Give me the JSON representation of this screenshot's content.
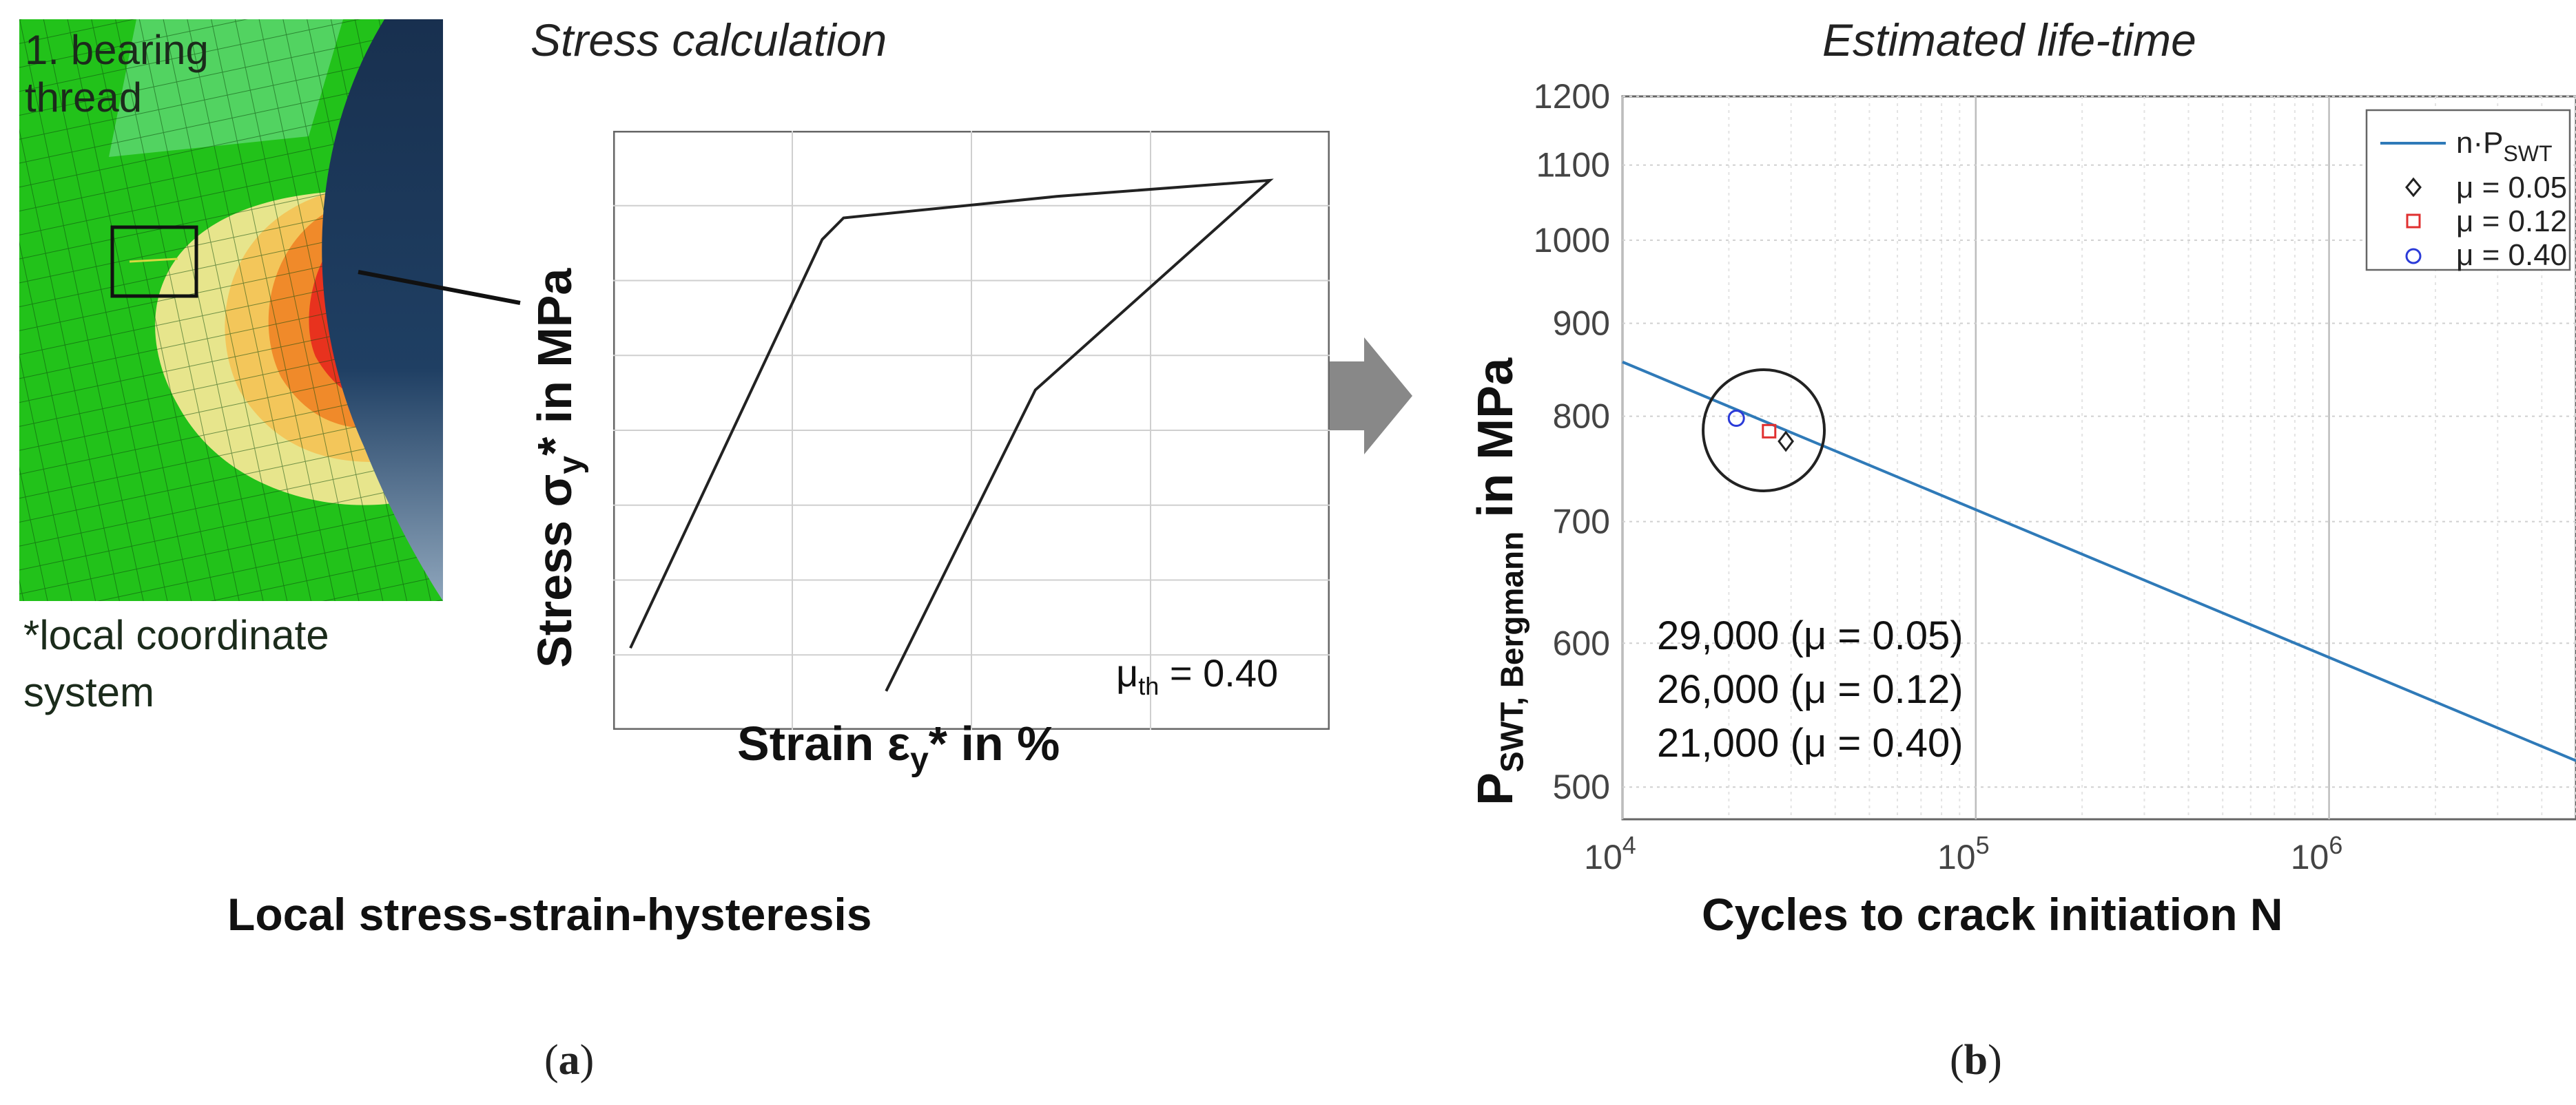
{
  "left_panel": {
    "fe_label_line1": "1. bearing",
    "fe_label_line2": "thread",
    "coord_note_line1": "*local coordinate",
    "coord_note_line2": "system",
    "colors": {
      "green": "#22c21a",
      "yellow": "#e7e58c",
      "orange": "#f08a2a",
      "red": "#e8321e",
      "bolt": "#1c3a5c"
    }
  },
  "hysteresis": {
    "title": "Stress calculation",
    "ylabel_pre": "Stress σ",
    "ylabel_sub": "y",
    "ylabel_post": "* in MPa",
    "xlabel_pre": "Strain ε",
    "xlabel_sub": "y",
    "xlabel_post": "* in %",
    "mu_pre": "μ",
    "mu_sub": "th",
    "mu_post": " = 0.40",
    "caption": "Local stress-strain-hysteresis"
  },
  "life_plot": {
    "title": "Estimated life-time",
    "ylabel_main": "P",
    "ylabel_sub": "SWT, Bergmann",
    "ylabel_post": " in MPa",
    "xlabel": "Cycles to crack initiation N",
    "legend": {
      "line_pre": "n·P",
      "line_sub": "SWT",
      "m1": "μ = 0.05",
      "m2": "μ = 0.12",
      "m3": "μ = 0.40"
    },
    "annotations": [
      "29,000 (μ = 0.05)",
      "26,000 (μ = 0.12)",
      "21,000 (μ = 0.40)"
    ]
  },
  "captions": {
    "a": "a",
    "b": "b"
  },
  "chart_data": [
    {
      "type": "line",
      "title": "Stress calculation",
      "xlabel": "Strain εy* in %",
      "ylabel": "Stress σy* in MPa",
      "grid": true,
      "x": [
        0.0,
        0.45,
        0.5,
        1.0,
        1.5,
        0.95,
        0.6
      ],
      "y": [
        0.12,
        0.88,
        0.92,
        0.96,
        0.99,
        0.6,
        0.04
      ],
      "note": "μth = 0.40"
    },
    {
      "type": "line",
      "title": "Estimated life-time",
      "xlabel": "Cycles to crack initiation N",
      "ylabel": "PSWT, Bergmann in MPa",
      "xscale": "log",
      "xlim": [
        10000,
        5000000
      ],
      "ylim": [
        480,
        1200
      ],
      "x_ticks": [
        10000,
        100000,
        1000000
      ],
      "x_tick_bases": [
        "10",
        "10",
        "10"
      ],
      "x_tick_exps": [
        "4",
        "5",
        "6"
      ],
      "y_ticks": [
        "500",
        "600",
        "700",
        "800",
        "900",
        "1000",
        "1100",
        "1200"
      ],
      "y_tick_values": [
        500,
        600,
        700,
        800,
        900,
        1000,
        1100,
        1200
      ],
      "legend_position": "top-right",
      "series": [
        {
          "name": "n·PSWT",
          "kind": "line",
          "color": "#2f7ab8",
          "x": [
            10000,
            5000000
          ],
          "y": [
            857,
            517
          ]
        },
        {
          "name": "μ = 0.05",
          "kind": "diamond",
          "color": "#222222",
          "x": [
            29000
          ],
          "y": [
            775
          ]
        },
        {
          "name": "μ = 0.12",
          "kind": "square",
          "color": "#e03030",
          "x": [
            26000
          ],
          "y": [
            785
          ]
        },
        {
          "name": "μ = 0.40",
          "kind": "circle",
          "color": "#2b3bd8",
          "x": [
            21000
          ],
          "y": [
            798
          ]
        }
      ]
    }
  ]
}
